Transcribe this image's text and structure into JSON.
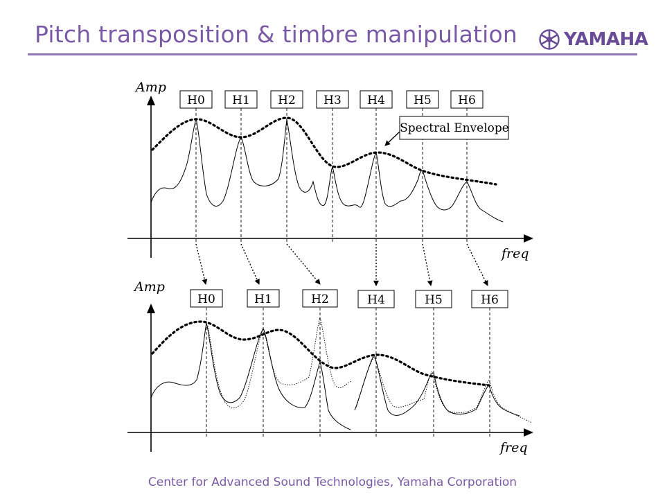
{
  "header": {
    "title": "Pitch transposition & timbre manipulation",
    "logo_text": "YAMAHA"
  },
  "footer": {
    "text": "Center for Advanced Sound Technologies, Yamaha Corporation"
  },
  "diagram": {
    "top_panel": {
      "y_axis_label": "Amp",
      "x_axis_label": "freq",
      "harmonics": [
        "H0",
        "H1",
        "H2",
        "H3",
        "H4",
        "H5",
        "H6"
      ],
      "callout": "Spectral Envelope"
    },
    "bottom_panel": {
      "y_axis_label": "Amp",
      "x_axis_label": "freq",
      "harmonics": [
        "H0",
        "H1",
        "H2",
        "H4",
        "H5",
        "H6"
      ]
    }
  },
  "colors": {
    "title": "#7a5aa6",
    "rule": "#8e72b6",
    "logo": "#6a4b98",
    "line": "#000000"
  },
  "icons": {
    "logo_mark": "tuning-fork-emblem-icon"
  }
}
